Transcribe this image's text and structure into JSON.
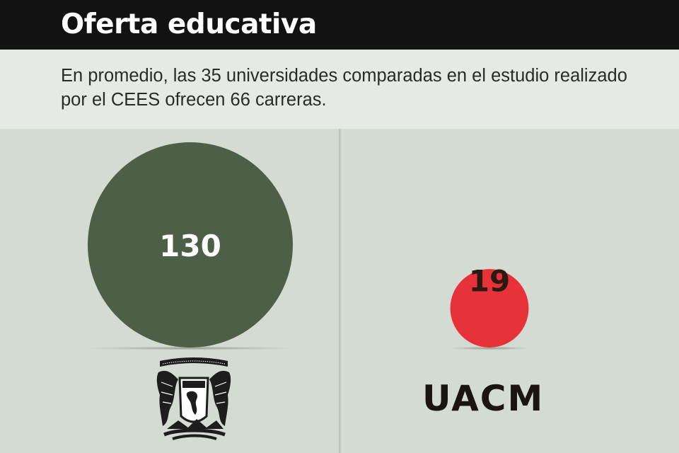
{
  "header": {
    "title": "Oferta educativa",
    "subtitle": "En promedio, las 35 universidades comparadas en el estudio realizado por el CEES ofrecen 66 carreras."
  },
  "chart_data": {
    "type": "bubble",
    "series": [
      {
        "label": "UNAM",
        "value": 130,
        "color": "#4e5f47",
        "value_label_color": "#ffffff",
        "logo": "unam-crest-icon"
      },
      {
        "label": "UACM",
        "value": 19,
        "color": "#e8323a",
        "value_label_color": "#2b1a12",
        "logo_text": "UACM"
      }
    ],
    "size_encoding": "area",
    "grid": false,
    "legend": "none"
  },
  "colors": {
    "title_bar": "#121212",
    "subtitle_band": "#e6eae4",
    "panel_bg": "#d4dbd2",
    "unam_green": "#4e5f47",
    "uacm_red": "#e8323a"
  }
}
